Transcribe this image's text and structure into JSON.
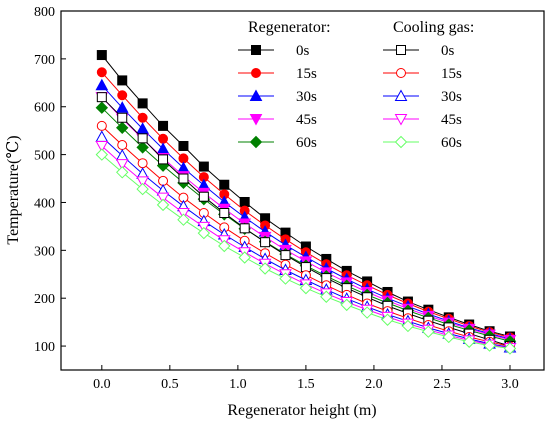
{
  "chart_data": {
    "type": "line",
    "xlabel": "Regenerator height (m)",
    "ylabel": "Temperature(℃)",
    "xlim": [
      -0.3,
      3.25
    ],
    "ylim": [
      50,
      800
    ],
    "xticks": [
      "0.0",
      "0.5",
      "1.0",
      "1.5",
      "2.0",
      "2.5",
      "3.0"
    ],
    "yticks": [
      "100",
      "200",
      "300",
      "400",
      "500",
      "600",
      "700",
      "800"
    ],
    "x": [
      0,
      0.15,
      0.3,
      0.45,
      0.6,
      0.75,
      0.9,
      1.05,
      1.2,
      1.35,
      1.5,
      1.65,
      1.8,
      1.95,
      2.1,
      2.25,
      2.4,
      2.55,
      2.7,
      2.85,
      3.0
    ],
    "legend": {
      "placement": "top-right",
      "groups": [
        {
          "title": "Regenerator:",
          "labels": [
            "0s",
            "15s",
            "30s",
            "45s",
            "60s"
          ]
        },
        {
          "title": "Cooling gas:",
          "labels": [
            "0s",
            "15s",
            "30s",
            "45s",
            "60s"
          ]
        }
      ]
    },
    "series": [
      {
        "name": "0s",
        "group": "Regenerator",
        "marker": "square",
        "filled": true,
        "color": "#000000",
        "values": [
          708,
          655,
          607,
          560,
          518,
          475,
          437,
          401,
          367,
          337,
          308,
          282,
          257,
          235,
          213,
          193,
          176,
          160,
          145,
          131,
          120
        ]
      },
      {
        "name": "15s",
        "group": "Regenerator",
        "marker": "circle",
        "filled": true,
        "color": "#ff0000",
        "values": [
          672,
          624,
          577,
          533,
          492,
          453,
          417,
          383,
          352,
          323,
          296,
          271,
          248,
          227,
          207,
          189,
          172,
          157,
          142,
          129,
          118
        ]
      },
      {
        "name": "30s",
        "group": "Regenerator",
        "marker": "triangle-up",
        "filled": true,
        "color": "#0000ff",
        "values": [
          645,
          598,
          554,
          512,
          472,
          436,
          401,
          369,
          339,
          311,
          286,
          262,
          240,
          219,
          200,
          183,
          167,
          152,
          138,
          126,
          115
        ]
      },
      {
        "name": "45s",
        "group": "Regenerator",
        "marker": "triangle-down",
        "filled": true,
        "color": "#ff00ff",
        "values": [
          620,
          575,
          533,
          493,
          455,
          420,
          387,
          356,
          328,
          301,
          277,
          254,
          233,
          213,
          195,
          178,
          163,
          149,
          136,
          124,
          113
        ]
      },
      {
        "name": "60s",
        "group": "Regenerator",
        "marker": "diamond",
        "filled": true,
        "color": "#008000",
        "values": [
          598,
          556,
          515,
          477,
          441,
          407,
          375,
          345,
          318,
          292,
          268,
          246,
          226,
          207,
          190,
          174,
          159,
          145,
          133,
          121,
          110
        ]
      },
      {
        "name": "0s",
        "group": "Cooling gas",
        "marker": "square",
        "filled": false,
        "color": "#000000",
        "values": [
          620,
          577,
          534,
          490,
          450,
          412,
          378,
          346,
          317,
          290,
          265,
          242,
          221,
          202,
          184,
          168,
          153,
          139,
          126,
          113,
          100
        ]
      },
      {
        "name": "15s",
        "group": "Cooling gas",
        "marker": "circle",
        "filled": false,
        "color": "#ff0000",
        "values": [
          560,
          520,
          482,
          445,
          410,
          378,
          348,
          320,
          294,
          270,
          248,
          227,
          207,
          189,
          173,
          158,
          144,
          131,
          119,
          109,
          99
        ]
      },
      {
        "name": "30s",
        "group": "Cooling gas",
        "marker": "triangle-up",
        "filled": false,
        "color": "#0000ff",
        "values": [
          537,
          498,
          460,
          425,
          392,
          361,
          333,
          307,
          282,
          259,
          238,
          218,
          199,
          182,
          166,
          152,
          138,
          126,
          115,
          105,
          97
        ]
      },
      {
        "name": "45s",
        "group": "Cooling gas",
        "marker": "triangle-down",
        "filled": false,
        "color": "#ff00ff",
        "values": [
          518,
          480,
          444,
          410,
          378,
          349,
          321,
          296,
          272,
          250,
          229,
          210,
          192,
          176,
          161,
          147,
          134,
          122,
          112,
          103,
          96
        ]
      },
      {
        "name": "60s",
        "group": "Cooling gas",
        "marker": "diamond",
        "filled": false,
        "color": "#66ff66",
        "values": [
          500,
          463,
          428,
          395,
          364,
          336,
          309,
          285,
          262,
          241,
          221,
          203,
          186,
          170,
          155,
          142,
          130,
          119,
          109,
          101,
          95
        ]
      }
    ]
  }
}
